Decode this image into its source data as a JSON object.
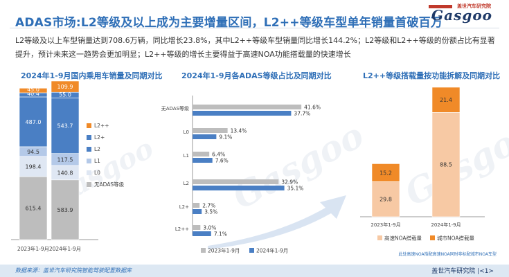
{
  "header": {
    "title": "ADAS市场:L2等级及以上成为主要增量区间，L2++等级车型单年销量首破百万",
    "logo_cn": "盖世汽车研究院",
    "logo_en": "Gasgoo"
  },
  "summary": "L2等级及以上车型销量达到708.6万辆，同比增长23.8%，其中L2++等级车型销量同比增长144.2%；L2等级和L2++等级的份额占比有显著提升，预计未来这一趋势会更加明显；L2++等级的增长主要得益于高速NOA功能搭载量的快速增长",
  "footer": {
    "source": "数据来源：盖世汽车研究院智能驾驶配置数据库",
    "org": "盖世汽车研究院",
    "page": "1",
    "note": "此处高速NOA指配高速NOA同时非标配城市NOA车型"
  },
  "colors": {
    "blue": "#4a7fc4",
    "light_blue": "#b4c9e8",
    "pale_blue": "#dfe7f3",
    "gray": "#bdbdbd",
    "orange": "#f08a28",
    "peach": "#f7c9a4",
    "title_blue": "#2f6fb7"
  },
  "chart_data": [
    {
      "type": "bar",
      "stacked": true,
      "title": "2024年1-9月国内乘用车销量及同期对比",
      "categories": [
        "2023年1-9月",
        "2024年1-9月"
      ],
      "series": [
        {
          "name": "无ADAS等级",
          "values": [
            615.4,
            583.9
          ],
          "color": "#bdbdbd"
        },
        {
          "name": "L0",
          "values": [
            198.4,
            140.8
          ],
          "color": "#dfe7f3"
        },
        {
          "name": "L1",
          "values": [
            94.5,
            117.5
          ],
          "color": "#b4c9e8"
        },
        {
          "name": "L2",
          "values": [
            487.0,
            543.7
          ],
          "color": "#4a7fc4"
        },
        {
          "name": "L2+",
          "values": [
            40.4,
            55.0
          ],
          "color": "#4a7fc4"
        },
        {
          "name": "L2++",
          "values": [
            45.0,
            109.9
          ],
          "color": "#f08a28"
        }
      ],
      "legend": [
        "L2++",
        "L2+",
        "L2",
        "L1",
        "L0",
        "无ADAS等级"
      ],
      "legend_position": "right"
    },
    {
      "type": "bar",
      "orientation": "horizontal",
      "title": "2024年1-9月各ADAS等级占比及同期对比",
      "categories": [
        "无ADAS等级",
        "L0",
        "L1",
        "L2",
        "L2+",
        "L2++"
      ],
      "unit": "%",
      "series": [
        {
          "name": "2023年1-9月",
          "values": [
            41.6,
            13.4,
            6.4,
            32.9,
            2.7,
            3.0
          ],
          "color": "#bdbdbd"
        },
        {
          "name": "2024年1-9月",
          "values": [
            37.7,
            9.1,
            7.6,
            35.1,
            3.5,
            7.1
          ],
          "color": "#4a7fc4"
        }
      ],
      "labels": [
        [
          "41.6%",
          "13.4%",
          "6.4%",
          "32.9%",
          "2.7%",
          "3.0%"
        ],
        [
          "37.7%",
          "9.1%",
          "7.6%",
          "35.1%",
          "3.5%",
          "7.1%"
        ]
      ],
      "legend_position": "bottom"
    },
    {
      "type": "bar",
      "stacked": true,
      "title": "L2++等级搭载量按功能拆解及同期对比",
      "categories": [
        "2023年1-9月",
        "2024年1-9月"
      ],
      "series": [
        {
          "name": "高速NOA搭载量",
          "values": [
            29.8,
            88.5
          ],
          "color": "#f7c9a4"
        },
        {
          "name": "城市NOA搭载量",
          "values": [
            15.2,
            21.4
          ],
          "color": "#f08a28"
        }
      ],
      "legend_position": "bottom"
    }
  ]
}
